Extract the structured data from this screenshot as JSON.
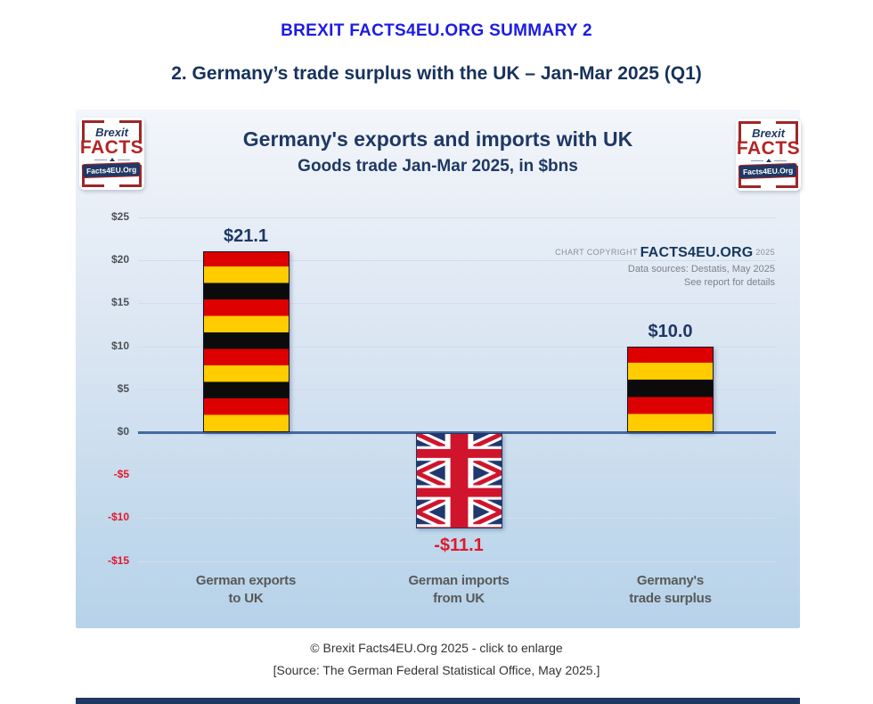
{
  "page": {
    "heading1": "BREXIT FACTS4EU.ORG SUMMARY 2",
    "heading2": "2. Germany’s trade surplus with the UK – Jan-Mar 2025 (Q1)",
    "footer_line1": "© Brexit Facts4EU.Org 2025 - click to enlarge",
    "footer_line2": "[Source: The German Federal Statistical Office, May 2025.]"
  },
  "logo": {
    "line1": "Brexit",
    "line2": "FACTS",
    "badge": "Facts4EU.Org"
  },
  "chart": {
    "title": "Germany's exports and imports with UK",
    "subtitle": "Goods trade Jan-Mar 2025, in $bns",
    "copyright_prefix": "CHART COPYRIGHT",
    "copyright_brand": "FACTS4EU.ORG",
    "copyright_year": "2025",
    "source_line1": "Data sources: Destatis, May 2025",
    "source_line2": "See report for details"
  },
  "chart_data": {
    "type": "bar",
    "title": "Germany's exports and imports with UK",
    "subtitle": "Goods trade Jan-Mar 2025, in $bns",
    "xlabel": "",
    "ylabel": "$bns",
    "categories": [
      [
        "German exports",
        "to UK"
      ],
      [
        "German imports",
        "from UK"
      ],
      [
        "Germany's",
        "trade surplus"
      ]
    ],
    "values": [
      21.1,
      -11.1,
      10.0
    ],
    "value_labels": [
      "$21.1",
      "-$11.1",
      "$10.0"
    ],
    "bar_styles": [
      "german-flag",
      "union-jack",
      "german-flag"
    ],
    "y_ticks": [
      25,
      20,
      15,
      10,
      5,
      0,
      -5,
      -10,
      -15
    ],
    "y_tick_labels": [
      "$25",
      "$20",
      "$15",
      "$10",
      "$5",
      "$0",
      "-$5",
      "-$10",
      "-$15"
    ],
    "ylim": [
      -17.5,
      27.5
    ],
    "grid": true,
    "legend": false
  },
  "colors": {
    "heading_blue": "#1c1ce4",
    "navy": "#1f3864",
    "negative_red": "#e0192d",
    "german_black": "#0b0b0b",
    "german_red": "#dd0000",
    "german_gold": "#ffcc00",
    "uj_navy": "#21386e",
    "uj_red": "#cf142b",
    "gridline": "#d2dde9",
    "zero_axis": "#46699f"
  }
}
